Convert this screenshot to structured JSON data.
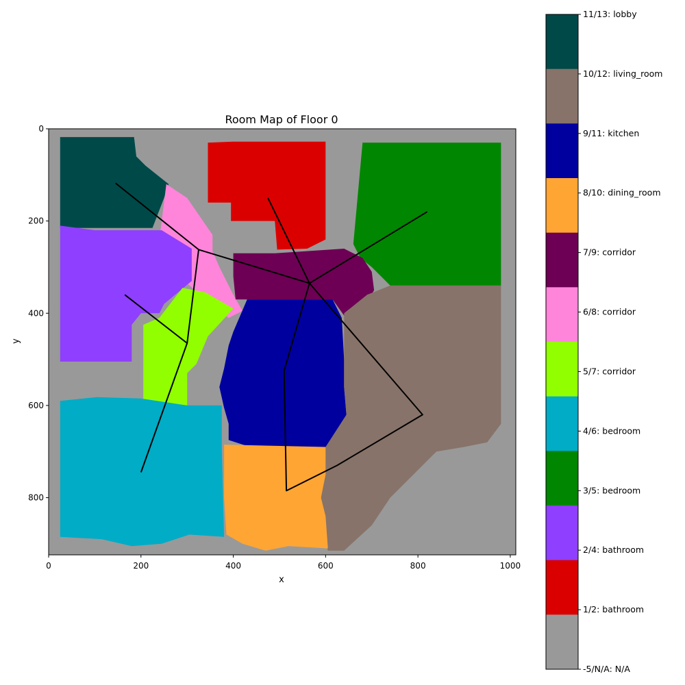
{
  "title": "Room Map of Floor 0",
  "xlabel": "x",
  "ylabel": "y",
  "chart_data": {
    "type": "heatmap",
    "title": "Room Map of Floor 0",
    "xlabel": "x",
    "ylabel": "y",
    "xlim": [
      0,
      1012
    ],
    "ylim": [
      924,
      0
    ],
    "x_ticks": [
      0,
      200,
      400,
      600,
      800,
      1000
    ],
    "y_ticks": [
      0,
      200,
      400,
      600,
      800
    ],
    "background": {
      "label": "-5/N/A: N/A",
      "color": "#999999"
    },
    "rooms": [
      {
        "label": "11/13: lobby",
        "color": "#004949",
        "polygon": [
          [
            25,
            18
          ],
          [
            185,
            18
          ],
          [
            190,
            60
          ],
          [
            210,
            80
          ],
          [
            260,
            120
          ],
          [
            250,
            150
          ],
          [
            225,
            215
          ],
          [
            25,
            215
          ]
        ]
      },
      {
        "label": "1/2: bathroom",
        "color": "#DB0000",
        "polygon": [
          [
            345,
            30
          ],
          [
            400,
            28
          ],
          [
            600,
            28
          ],
          [
            600,
            240
          ],
          [
            560,
            260
          ],
          [
            495,
            262
          ],
          [
            490,
            200
          ],
          [
            395,
            200
          ],
          [
            395,
            160
          ],
          [
            345,
            160
          ]
        ]
      },
      {
        "label": "3/5: bedroom",
        "color": "#008600",
        "polygon": [
          [
            680,
            30
          ],
          [
            980,
            30
          ],
          [
            980,
            340
          ],
          [
            740,
            340
          ],
          [
            720,
            320
          ],
          [
            700,
            300
          ],
          [
            675,
            280
          ],
          [
            660,
            250
          ]
        ]
      },
      {
        "label": "6/8: corridor",
        "color": "#FF85DA",
        "polygon": [
          [
            255,
            120
          ],
          [
            300,
            150
          ],
          [
            355,
            230
          ],
          [
            355,
            265
          ],
          [
            370,
            300
          ],
          [
            400,
            360
          ],
          [
            420,
            395
          ],
          [
            390,
            410
          ],
          [
            350,
            380
          ],
          [
            300,
            335
          ],
          [
            255,
            300
          ],
          [
            225,
            275
          ],
          [
            240,
            240
          ]
        ]
      },
      {
        "label": "7/9: corridor",
        "color": "#6D0054",
        "polygon": [
          [
            400,
            270
          ],
          [
            490,
            270
          ],
          [
            640,
            260
          ],
          [
            680,
            280
          ],
          [
            700,
            310
          ],
          [
            705,
            350
          ],
          [
            690,
            375
          ],
          [
            660,
            400
          ],
          [
            640,
            405
          ],
          [
            615,
            370
          ],
          [
            440,
            370
          ],
          [
            405,
            370
          ],
          [
            400,
            320
          ]
        ]
      },
      {
        "label": "2/4: bathroom",
        "color": "#8F3FFF",
        "polygon": [
          [
            25,
            210
          ],
          [
            100,
            220
          ],
          [
            245,
            220
          ],
          [
            310,
            260
          ],
          [
            310,
            330
          ],
          [
            280,
            355
          ],
          [
            250,
            380
          ],
          [
            240,
            400
          ],
          [
            200,
            400
          ],
          [
            180,
            425
          ],
          [
            180,
            505
          ],
          [
            25,
            505
          ]
        ]
      },
      {
        "label": "5/7: corridor",
        "color": "#92FF00",
        "polygon": [
          [
            290,
            345
          ],
          [
            340,
            355
          ],
          [
            400,
            390
          ],
          [
            345,
            450
          ],
          [
            320,
            510
          ],
          [
            300,
            530
          ],
          [
            300,
            600
          ],
          [
            205,
            595
          ],
          [
            205,
            425
          ],
          [
            240,
            410
          ]
        ]
      },
      {
        "label": "9/11: kitchen",
        "color": "#00009F",
        "polygon": [
          [
            430,
            370
          ],
          [
            615,
            370
          ],
          [
            635,
            410
          ],
          [
            640,
            500
          ],
          [
            640,
            560
          ],
          [
            645,
            620
          ],
          [
            640,
            690
          ],
          [
            600,
            690
          ],
          [
            520,
            690
          ],
          [
            430,
            688
          ],
          [
            390,
            675
          ],
          [
            390,
            640
          ],
          [
            380,
            605
          ],
          [
            370,
            560
          ],
          [
            380,
            520
          ],
          [
            390,
            470
          ],
          [
            400,
            440
          ]
        ]
      },
      {
        "label": "10/12: living_room",
        "color": "#877369",
        "polygon": [
          [
            640,
            400
          ],
          [
            690,
            360
          ],
          [
            740,
            340
          ],
          [
            980,
            340
          ],
          [
            980,
            640
          ],
          [
            950,
            680
          ],
          [
            900,
            690
          ],
          [
            840,
            700
          ],
          [
            790,
            750
          ],
          [
            740,
            800
          ],
          [
            700,
            860
          ],
          [
            640,
            915
          ],
          [
            605,
            915
          ],
          [
            595,
            880
          ],
          [
            590,
            840
          ],
          [
            590,
            780
          ],
          [
            600,
            690
          ],
          [
            645,
            620
          ],
          [
            640,
            560
          ],
          [
            640,
            500
          ]
        ]
      },
      {
        "label": "4/6: bedroom",
        "color": "#00ACC6",
        "polygon": [
          [
            25,
            590
          ],
          [
            105,
            582
          ],
          [
            200,
            585
          ],
          [
            300,
            600
          ],
          [
            375,
            600
          ],
          [
            375,
            690
          ],
          [
            380,
            885
          ],
          [
            305,
            880
          ],
          [
            245,
            900
          ],
          [
            180,
            905
          ],
          [
            115,
            890
          ],
          [
            25,
            885
          ]
        ]
      },
      {
        "label": "8/10: dining_room",
        "color": "#FFA534",
        "polygon": [
          [
            380,
            685
          ],
          [
            600,
            690
          ],
          [
            600,
            750
          ],
          [
            590,
            800
          ],
          [
            600,
            840
          ],
          [
            605,
            910
          ],
          [
            520,
            905
          ],
          [
            470,
            915
          ],
          [
            420,
            900
          ],
          [
            385,
            880
          ],
          [
            380,
            800
          ]
        ]
      }
    ],
    "paths": [
      [
        [
          145,
          118
        ],
        [
          325,
          262
        ],
        [
          565,
          335
        ],
        [
          820,
          180
        ]
      ],
      [
        [
          325,
          262
        ],
        [
          300,
          465
        ],
        [
          200,
          745
        ]
      ],
      [
        [
          165,
          360
        ],
        [
          300,
          465
        ]
      ],
      [
        [
          475,
          150
        ],
        [
          565,
          335
        ],
        [
          510,
          525
        ],
        [
          515,
          785
        ],
        [
          625,
          730
        ],
        [
          810,
          620
        ],
        [
          565,
          335
        ]
      ]
    ],
    "colorbar": {
      "type": "categorical",
      "entries": [
        {
          "label": "11/13: lobby",
          "color": "#004949"
        },
        {
          "label": "10/12: living_room",
          "color": "#877369"
        },
        {
          "label": "9/11: kitchen",
          "color": "#00009F"
        },
        {
          "label": "8/10: dining_room",
          "color": "#FFA534"
        },
        {
          "label": "7/9: corridor",
          "color": "#6D0054"
        },
        {
          "label": "6/8: corridor",
          "color": "#FF85DA"
        },
        {
          "label": "5/7: corridor",
          "color": "#92FF00"
        },
        {
          "label": "4/6: bedroom",
          "color": "#00ACC6"
        },
        {
          "label": "3/5: bedroom",
          "color": "#008600"
        },
        {
          "label": "2/4: bathroom",
          "color": "#8F3FFF"
        },
        {
          "label": "1/2: bathroom",
          "color": "#DB0000"
        },
        {
          "label": "-5/N/A: N/A",
          "color": "#999999"
        }
      ]
    }
  }
}
